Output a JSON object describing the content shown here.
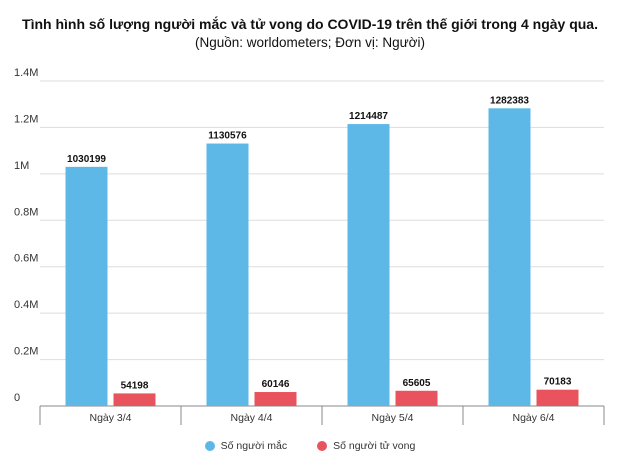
{
  "chart_data": {
    "type": "bar",
    "title": "Tình hình số lượng người mắc và tử vong do COVID-19 trên thế giới trong 4 ngày qua.",
    "subtitle": "(Nguồn: worldometers; Đơn vị: Người)",
    "categories": [
      "Ngày 3/4",
      "Ngày 4/4",
      "Ngày 5/4",
      "Ngày 6/4"
    ],
    "series": [
      {
        "name": "Số người mắc",
        "color": "#5db8e8",
        "values": [
          1030199,
          1130576,
          1214487,
          1282383
        ]
      },
      {
        "name": "Số người tử vong",
        "color": "#e8535d",
        "values": [
          54198,
          60146,
          65605,
          70183
        ]
      }
    ],
    "yticks": [
      {
        "value": 0,
        "label": "0"
      },
      {
        "value": 200000,
        "label": "0.2M"
      },
      {
        "value": 400000,
        "label": "0.4M"
      },
      {
        "value": 600000,
        "label": "0.6M"
      },
      {
        "value": 800000,
        "label": "0.8M"
      },
      {
        "value": 1000000,
        "label": "1M"
      },
      {
        "value": 1200000,
        "label": "1.2M"
      },
      {
        "value": 1400000,
        "label": "1.4M"
      }
    ],
    "ylim": [
      0,
      1400000
    ],
    "grid": true,
    "legend_position": "bottom"
  }
}
